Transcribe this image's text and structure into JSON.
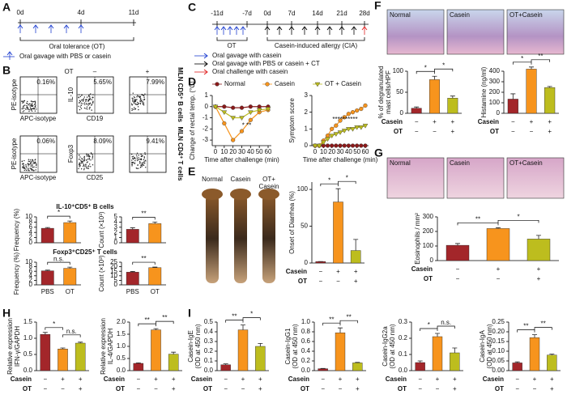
{
  "panel_labels": [
    "A",
    "B",
    "C",
    "D",
    "E",
    "F",
    "G",
    "H",
    "I"
  ],
  "timeline_a": {
    "days": [
      "0d",
      "4d",
      "11d"
    ],
    "phase": "Oral tolerance (OT)",
    "legend": "Oral gavage with PBS or casein"
  },
  "timeline_c": {
    "days": [
      "-11d",
      "-7d",
      "0d",
      "7d",
      "14d",
      "21d",
      "28d"
    ],
    "phases": [
      "OT",
      "Casein-induced allergy (CIA)"
    ],
    "legend": [
      "Oral gavage with casein",
      "Oral gavage with PBS or casein + CT",
      "Oral challenge with casein"
    ]
  },
  "flow": {
    "header": [
      "OT",
      "–",
      "+"
    ],
    "rows": [
      {
        "y_iso": "PE-isotype",
        "x_iso": "APC-isotype",
        "y": "IL-10",
        "x": "CD19",
        "gates": [
          "0.16%",
          "5.65%",
          "7.99%"
        ],
        "population": "MLN CD5⁺ B cells"
      },
      {
        "y_iso": "PE-isotype",
        "x_iso": "APC-isotype",
        "y": "Foxp3",
        "x": "CD25",
        "gates": [
          "0.06%",
          "8.09%",
          "9.41%"
        ],
        "population": "MLN CD4⁺ T cells"
      }
    ]
  },
  "images_e": [
    [
      "Normal"
    ],
    [
      "Casein"
    ],
    [
      "OT+",
      "Casein"
    ]
  ],
  "images_f": [
    "Normal",
    "Casein",
    "OT+Casein"
  ],
  "images_g": [
    "Normal",
    "Casein",
    "OT+Casein"
  ],
  "chart_data": [
    {
      "type": "bar",
      "title": "IL-10⁺CD5⁺ B cells",
      "ylabel": "Frequency (%)",
      "categories": [
        null,
        null
      ],
      "values": [
        5.6,
        7.8
      ],
      "errors": [
        0.3,
        0.6
      ],
      "colors": [
        "#a3262a",
        "#f7941d"
      ],
      "ylim": [
        0,
        10
      ],
      "yticks": [
        0,
        2,
        4,
        6,
        8,
        10
      ],
      "significance": [
        "*"
      ]
    },
    {
      "type": "bar",
      "ylabel": "Count (×10³)",
      "categories": [
        null,
        null
      ],
      "values": [
        2.6,
        3.7
      ],
      "errors": [
        0.3,
        0.3
      ],
      "colors": [
        "#a3262a",
        "#f7941d"
      ],
      "ylim": [
        0,
        5
      ],
      "yticks": [
        0,
        1,
        2,
        3,
        4,
        5
      ],
      "significance": [
        "**"
      ]
    },
    {
      "type": "bar",
      "title": "Foxp3⁺CD25⁺ T cells",
      "ylabel": "Frequency (%)",
      "categories": [
        "PBS",
        "OT"
      ],
      "values": [
        6.2,
        7.3
      ],
      "errors": [
        0.3,
        0.5
      ],
      "colors": [
        "#a3262a",
        "#f7941d"
      ],
      "ylim": [
        0,
        10
      ],
      "yticks": [
        0,
        2,
        4,
        6,
        8,
        10
      ],
      "significance": [
        "n.s."
      ]
    },
    {
      "type": "bar",
      "ylabel": "Count (×10³)",
      "categories": [
        "PBS",
        "OT"
      ],
      "values": [
        14,
        19
      ],
      "errors": [
        0.8,
        0.6
      ],
      "colors": [
        "#a3262a",
        "#f7941d"
      ],
      "ylim": [
        0,
        25
      ],
      "yticks": [
        0,
        5,
        10,
        15,
        20,
        25
      ],
      "significance": [
        "**"
      ]
    },
    {
      "type": "line",
      "ylabel": "Change of rectal temp. (°C)",
      "xlabel": "Time after challenge (min)",
      "x": [
        0,
        10,
        20,
        30,
        40,
        50,
        60
      ],
      "xlim": [
        0,
        60
      ],
      "xticks": [
        0,
        10,
        20,
        30,
        40,
        50,
        60
      ],
      "ylim": [
        -3.5,
        1
      ],
      "yticks": [
        1,
        0,
        -1,
        -2,
        -3
      ],
      "legend": true,
      "annotation": "* **",
      "series": [
        {
          "name": "Normal",
          "color": "#8b1a1a",
          "marker": "circle",
          "values": [
            0,
            0,
            -0.1,
            -0.1,
            0,
            0,
            0
          ]
        },
        {
          "name": "Casein",
          "color": "#f7941d",
          "marker": "circle",
          "values": [
            0,
            -1.5,
            -3,
            -2.2,
            -1.2,
            -0.5,
            -0.3
          ]
        },
        {
          "name": "OT + Casein",
          "color": "#bdbd1e",
          "marker": "triangle",
          "values": [
            0,
            -0.5,
            -1,
            -1,
            -0.5,
            -0.3,
            -0.2
          ]
        }
      ]
    },
    {
      "type": "line",
      "ylabel": "Symptom score",
      "xlabel": "Time after challenge (min)",
      "x": [
        0,
        5,
        10,
        15,
        20,
        25,
        30,
        35,
        40,
        45,
        50,
        55,
        60
      ],
      "xlim": [
        0,
        60
      ],
      "xticks": [
        0,
        10,
        20,
        30,
        40,
        50,
        60
      ],
      "ylim": [
        0,
        3
      ],
      "yticks": [
        0,
        1,
        2,
        3
      ],
      "annotation": "**********",
      "series": [
        {
          "color": "#8b1a1a",
          "marker": "circle",
          "values": [
            0,
            0,
            0,
            0,
            0,
            0,
            0,
            0,
            0,
            0,
            0,
            0,
            0
          ]
        },
        {
          "color": "#f7941d",
          "marker": "circle",
          "values": [
            0,
            0,
            0.3,
            0.6,
            1,
            1.2,
            1.5,
            1.7,
            1.9,
            2,
            2.1,
            2.2,
            2.4
          ]
        },
        {
          "color": "#bdbd1e",
          "marker": "triangle",
          "values": [
            0,
            0,
            0.2,
            0.4,
            0.6,
            0.7,
            0.8,
            0.9,
            1,
            1,
            1.1,
            1.1,
            1.2
          ]
        }
      ]
    },
    {
      "type": "bar",
      "ylabel": "Onset of Diarrhea (%)",
      "values": [
        2,
        83,
        17
      ],
      "errors": [
        0,
        18,
        15
      ],
      "colors": [
        "#a3262a",
        "#f7941d",
        "#bdbd1e"
      ],
      "ylim": [
        0,
        110
      ],
      "yticks": [
        0,
        50,
        100
      ],
      "significance": [
        "*",
        "*"
      ],
      "conditions": [
        {
          "name": "Casein",
          "marks": [
            "−",
            "+",
            "+"
          ]
        },
        {
          "name": "OT",
          "marks": [
            "−",
            "−",
            "+"
          ]
        }
      ]
    },
    {
      "type": "bar",
      "ylabel": [
        "% of degranulated",
        "mast cells/HPF"
      ],
      "values": [
        12,
        80,
        36
      ],
      "errors": [
        3,
        8,
        5
      ],
      "colors": [
        "#a3262a",
        "#f7941d",
        "#bdbd1e"
      ],
      "ylim": [
        0,
        100
      ],
      "yticks": [
        0,
        50,
        100
      ],
      "significance": [
        "*",
        "*"
      ],
      "conditions": [
        {
          "name": "Casein",
          "marks": [
            "−",
            "+",
            "+"
          ]
        },
        {
          "name": "OT",
          "marks": [
            "−",
            "−",
            "+"
          ]
        }
      ]
    },
    {
      "type": "bar",
      "ylabel": "Histamine (ng/ml)",
      "values": [
        135,
        420,
        245
      ],
      "errors": [
        50,
        20,
        10
      ],
      "colors": [
        "#a3262a",
        "#f7941d",
        "#bdbd1e"
      ],
      "ylim": [
        0,
        400
      ],
      "yticks": [
        0,
        100,
        200,
        300,
        400
      ],
      "significance": [
        "*",
        "**"
      ],
      "conditions": [
        {
          "name": "Casein",
          "marks": [
            "−",
            "+",
            "+"
          ]
        },
        {
          "name": "OT",
          "marks": [
            "−",
            "−",
            "+"
          ]
        }
      ]
    },
    {
      "type": "bar",
      "ylabel": "Eosinophils / mm²",
      "values": [
        105,
        220,
        148
      ],
      "errors": [
        12,
        6,
        25
      ],
      "colors": [
        "#a3262a",
        "#f7941d",
        "#bdbd1e"
      ],
      "ylim": [
        0,
        300
      ],
      "yticks": [
        0,
        100,
        200,
        300
      ],
      "significance": [
        "**",
        "*"
      ],
      "conditions": [
        {
          "name": "Casein",
          "marks": [
            "−",
            "+",
            "+"
          ]
        },
        {
          "name": "OT",
          "marks": [
            "−",
            "−",
            "+"
          ]
        }
      ]
    },
    {
      "type": "bar",
      "ylabel": [
        "Relative expression",
        "IFN-γ/GAPDH"
      ],
      "values": [
        1.12,
        0.67,
        0.85
      ],
      "errors": [
        0.06,
        0.03,
        0.03
      ],
      "colors": [
        "#a3262a",
        "#f7941d",
        "#bdbd1e"
      ],
      "ylim": [
        0,
        1.5
      ],
      "yticks": [
        {
          "value": 0,
          "label": "0.0"
        },
        0.5,
        {
          "value": 1,
          "label": "1.0"
        },
        1.5
      ],
      "significance": [
        "*",
        "n.s."
      ],
      "conditions": [
        {
          "name": "Casein",
          "marks": [
            "−",
            "+",
            "+"
          ]
        },
        {
          "name": "OT",
          "marks": [
            "−",
            "−",
            "+"
          ]
        }
      ]
    },
    {
      "type": "bar",
      "ylabel": [
        "Relative expression",
        "IL-4/GAPDH"
      ],
      "values": [
        0.3,
        1.68,
        0.68
      ],
      "errors": [
        0.02,
        0.05,
        0.08
      ],
      "colors": [
        "#a3262a",
        "#f7941d",
        "#bdbd1e"
      ],
      "ylim": [
        0,
        2
      ],
      "yticks": [
        {
          "value": 0,
          "label": "0.0"
        },
        0.5,
        {
          "value": 1,
          "label": "1.0"
        },
        1.5,
        {
          "value": 2,
          "label": "2.0"
        }
      ],
      "significance": [
        "**",
        "**"
      ],
      "conditions": [
        {
          "name": "Casein",
          "marks": [
            "−",
            "+",
            "+"
          ]
        },
        {
          "name": "OT",
          "marks": [
            "−",
            "−",
            "+"
          ]
        }
      ]
    },
    {
      "type": "bar",
      "ylabel": [
        "Casein-IgE",
        "(OD at 450 nm)"
      ],
      "values": [
        0.06,
        0.42,
        0.25
      ],
      "errors": [
        0.01,
        0.05,
        0.03
      ],
      "colors": [
        "#a3262a",
        "#f7941d",
        "#bdbd1e"
      ],
      "ylim": [
        0,
        0.5
      ],
      "yticks": [
        {
          "value": 0,
          "label": "0.0"
        },
        0.1,
        0.2,
        0.3,
        0.4,
        0.5
      ],
      "significance": [
        "**",
        "*"
      ],
      "conditions": [
        {
          "name": "Casein",
          "marks": [
            "−",
            "+",
            "+"
          ]
        },
        {
          "name": "OT",
          "marks": [
            "−",
            "−",
            "+"
          ]
        }
      ]
    },
    {
      "type": "bar",
      "ylabel": [
        "Casein-IgG1",
        "(OD at 450 nm)"
      ],
      "values": [
        0.04,
        0.78,
        0.16
      ],
      "errors": [
        0.005,
        0.1,
        0.01
      ],
      "colors": [
        "#a3262a",
        "#f7941d",
        "#bdbd1e"
      ],
      "ylim": [
        0,
        1
      ],
      "yticks": [
        {
          "value": 0,
          "label": "0.0"
        },
        0.2,
        0.4,
        0.6,
        0.8,
        {
          "value": 1,
          "label": "1.0"
        }
      ],
      "significance": [
        "**",
        "**"
      ],
      "conditions": [
        {
          "name": "Casein",
          "marks": [
            "−",
            "+",
            "+"
          ]
        },
        {
          "name": "OT",
          "marks": [
            "−",
            "−",
            "+"
          ]
        }
      ]
    },
    {
      "type": "bar",
      "ylabel": [
        "Casein-IgG2a",
        "(OD at 450 nm)"
      ],
      "values": [
        0.05,
        0.21,
        0.11
      ],
      "errors": [
        0.01,
        0.02,
        0.03
      ],
      "colors": [
        "#a3262a",
        "#f7941d",
        "#bdbd1e"
      ],
      "ylim": [
        0,
        0.3
      ],
      "yticks": [
        {
          "value": 0,
          "label": "0.0"
        },
        0.1,
        0.2,
        0.3
      ],
      "significance": [
        "*",
        "n.s."
      ],
      "conditions": [
        {
          "name": "Casein",
          "marks": [
            "−",
            "+",
            "+"
          ]
        },
        {
          "name": "OT",
          "marks": [
            "−",
            "−",
            "+"
          ]
        }
      ]
    },
    {
      "type": "bar",
      "ylabel": [
        "Casein-IgA",
        "(OD at 450 nm)"
      ],
      "values": [
        0.04,
        0.17,
        0.08
      ],
      "errors": [
        0.005,
        0.015,
        0.005
      ],
      "colors": [
        "#a3262a",
        "#f7941d",
        "#bdbd1e"
      ],
      "ylim": [
        0,
        0.25
      ],
      "yticks": [
        {
          "value": 0,
          "label": "0.00"
        },
        0.05,
        {
          "value": 0.1,
          "label": "0.10"
        },
        0.15,
        {
          "value": 0.2,
          "label": "0.20"
        },
        0.25
      ],
      "significance": [
        "**",
        "**"
      ],
      "conditions": [
        {
          "name": "Casein",
          "marks": [
            "−",
            "+",
            "+"
          ]
        },
        {
          "name": "OT",
          "marks": [
            "−",
            "−",
            "+"
          ]
        }
      ]
    }
  ]
}
